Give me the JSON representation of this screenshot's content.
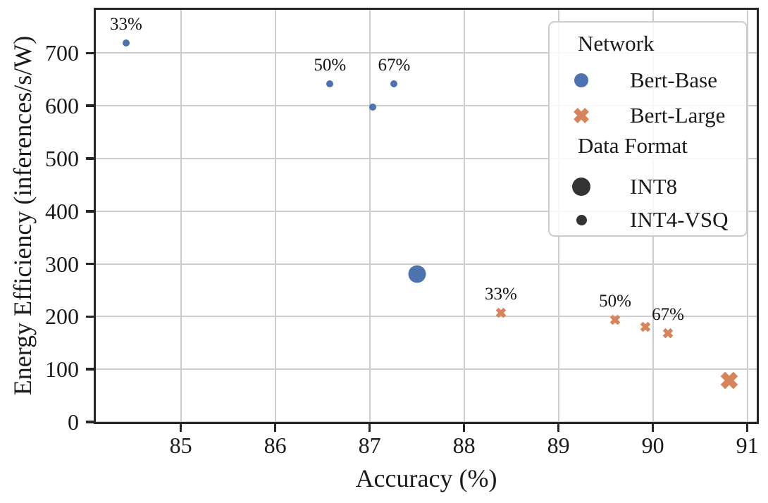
{
  "chart_data": {
    "type": "scatter",
    "title": "",
    "xlabel": "Accuracy (%)",
    "ylabel": "Energy Efficiency (inferences/s/W)",
    "xlim": [
      84.1,
      91.1
    ],
    "ylim": [
      0,
      782
    ],
    "xticks": [
      85,
      86,
      87,
      88,
      89,
      90,
      91
    ],
    "yticks": [
      0,
      100,
      200,
      300,
      400,
      500,
      600,
      700
    ],
    "grid": true,
    "colors": {
      "bert_base": "#4C72B0",
      "bert_large": "#D8845A",
      "data_format_marker": "#333333",
      "grid": "#cdcdcd",
      "spine": "#262626"
    },
    "legend": {
      "position": "upper right",
      "sections": [
        {
          "title": "Network",
          "items": [
            {
              "label": "Bert-Base",
              "marker": "circle",
              "color": "#4C72B0"
            },
            {
              "label": "Bert-Large",
              "marker": "x",
              "color": "#D8845A"
            }
          ]
        },
        {
          "title": "Data Format",
          "items": [
            {
              "label": "INT8",
              "marker": "circle-large",
              "color": "#333333"
            },
            {
              "label": "INT4-VSQ",
              "marker": "circle-small",
              "color": "#333333"
            }
          ]
        }
      ]
    },
    "series": [
      {
        "name": "Bert-Base",
        "marker": "circle",
        "color": "#4C72B0",
        "points": [
          {
            "x": 84.42,
            "y": 719,
            "format": "INT4-VSQ",
            "label": "33%"
          },
          {
            "x": 86.58,
            "y": 642,
            "format": "INT4-VSQ",
            "label": "50%"
          },
          {
            "x": 87.03,
            "y": 598,
            "format": "INT4-VSQ",
            "label": ""
          },
          {
            "x": 87.26,
            "y": 641,
            "format": "INT4-VSQ",
            "label": "67%"
          },
          {
            "x": 87.5,
            "y": 281,
            "format": "INT8",
            "label": ""
          }
        ]
      },
      {
        "name": "Bert-Large",
        "marker": "x",
        "color": "#D8845A",
        "points": [
          {
            "x": 88.39,
            "y": 207,
            "format": "INT4-VSQ",
            "label": "33%"
          },
          {
            "x": 89.6,
            "y": 194,
            "format": "INT4-VSQ",
            "label": "50%"
          },
          {
            "x": 89.92,
            "y": 181,
            "format": "INT4-VSQ",
            "label": ""
          },
          {
            "x": 90.16,
            "y": 169,
            "format": "INT4-VSQ",
            "label": "67%"
          },
          {
            "x": 90.81,
            "y": 79,
            "format": "INT8",
            "label": ""
          }
        ]
      }
    ]
  }
}
